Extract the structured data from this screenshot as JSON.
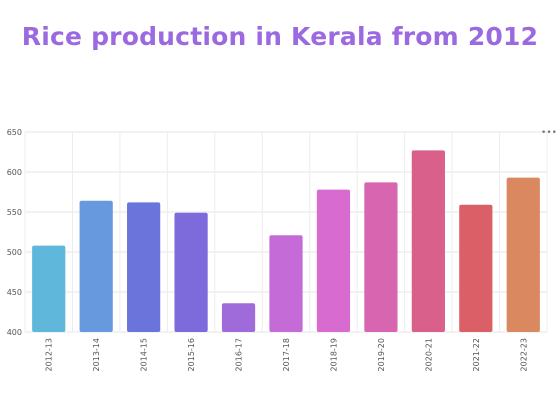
{
  "title": "Rice production in Kerala from 2012",
  "chart_data": {
    "type": "bar",
    "title": "Rice production in Kerala from 2012",
    "xlabel": "",
    "ylabel": "",
    "categories": [
      "2012-13",
      "2013-14",
      "2014-15",
      "2015-16",
      "2016-17",
      "2017-18",
      "2018-19",
      "2019-20",
      "2020-21",
      "2021-22",
      "2022-23"
    ],
    "values": [
      508,
      564,
      562,
      549,
      436,
      521,
      578,
      587,
      627,
      559,
      593
    ],
    "ylim": [
      400,
      650
    ],
    "yticks": [
      400,
      450,
      500,
      550,
      600,
      650
    ],
    "grid": true,
    "legend": "none",
    "colors": [
      "#5fb8dc",
      "#6699dd",
      "#6b74db",
      "#7d6adb",
      "#9f6ad9",
      "#c56bd8",
      "#d86bd0",
      "#d865b0",
      "#d9608b",
      "#db5f66",
      "#d9885f"
    ]
  },
  "menu_icon": "more-dots-icon"
}
